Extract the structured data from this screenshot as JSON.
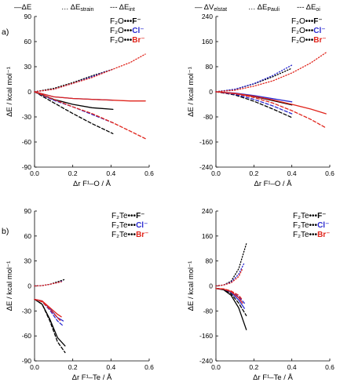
{
  "header": {
    "left": [
      {
        "dash": "solid",
        "text": "—ΔE"
      },
      {
        "dash": "dot",
        "text": "… ΔE_strain"
      },
      {
        "dash": "dash",
        "text": "--- ΔE_int"
      }
    ],
    "right": [
      {
        "dash": "solid",
        "text": "— ΔV_elstat"
      },
      {
        "dash": "dot",
        "text": "… ΔE_Pauli"
      },
      {
        "dash": "dash",
        "text": "--- ΔE_oi"
      }
    ]
  },
  "panel_labels": [
    "a)",
    "b)"
  ],
  "series_colors": {
    "F": "#000000",
    "Cl": "#2b2bd0",
    "Br": "#e0241b"
  },
  "chart_data": [
    {
      "type": "line",
      "panel": "a-left",
      "xlabel": "Δr F¹–O / Å",
      "ylabel": "ΔE / kcal mol⁻¹",
      "xlim": [
        0,
        0.6
      ],
      "ylim": [
        -90,
        90
      ],
      "xticks": [
        "0.0",
        "0.2",
        "0.4",
        "0.6"
      ],
      "yticks": [
        "90",
        "60",
        "30",
        "0",
        "-30",
        "-60",
        "-90"
      ],
      "legend": [
        {
          "prefix": "F₂O•••",
          "ion": "F⁻",
          "color": "#000000"
        },
        {
          "prefix": "F₂O•••",
          "ion": "Cl⁻",
          "color": "#2b2bd0"
        },
        {
          "prefix": "F₂O•••",
          "ion": "Br⁻",
          "color": "#e0241b"
        }
      ],
      "series": [
        {
          "ion": "F",
          "quantity": "dE",
          "dash": "solid",
          "x": [
            0,
            0.1,
            0.2,
            0.3,
            0.41
          ],
          "y": [
            0,
            -9,
            -15,
            -19,
            -21
          ]
        },
        {
          "ion": "F",
          "quantity": "dEstrain",
          "dash": "dot",
          "x": [
            0,
            0.1,
            0.2,
            0.3,
            0.41
          ],
          "y": [
            0,
            4,
            11,
            19,
            27
          ]
        },
        {
          "ion": "F",
          "quantity": "dEint",
          "dash": "dash",
          "x": [
            0,
            0.1,
            0.2,
            0.3,
            0.41
          ],
          "y": [
            0,
            -13,
            -26,
            -38,
            -50
          ]
        },
        {
          "ion": "Cl",
          "quantity": "dE",
          "dash": "solid",
          "x": [
            0,
            0.1,
            0.2,
            0.3,
            0.41
          ],
          "y": [
            0,
            -6,
            -8,
            -9,
            -10
          ]
        },
        {
          "ion": "Cl",
          "quantity": "dEstrain",
          "dash": "dot",
          "x": [
            0,
            0.1,
            0.2,
            0.3,
            0.41
          ],
          "y": [
            0,
            3,
            10,
            18,
            27
          ]
        },
        {
          "ion": "Cl",
          "quantity": "dEint",
          "dash": "dash",
          "x": [
            0,
            0.1,
            0.2,
            0.3,
            0.41
          ],
          "y": [
            0,
            -10,
            -18,
            -27,
            -37
          ]
        },
        {
          "ion": "Br",
          "quantity": "dE",
          "dash": "solid",
          "x": [
            0,
            0.1,
            0.2,
            0.3,
            0.41,
            0.5,
            0.58
          ],
          "y": [
            0,
            -6,
            -8,
            -9,
            -10,
            -11,
            -11
          ]
        },
        {
          "ion": "Br",
          "quantity": "dEstrain",
          "dash": "dot",
          "x": [
            0,
            0.1,
            0.2,
            0.3,
            0.41,
            0.5,
            0.58
          ],
          "y": [
            0,
            3,
            10,
            17,
            27,
            35,
            45
          ]
        },
        {
          "ion": "Br",
          "quantity": "dEint",
          "dash": "dash",
          "x": [
            0,
            0.1,
            0.2,
            0.3,
            0.41,
            0.5,
            0.58
          ],
          "y": [
            0,
            -9,
            -18,
            -26,
            -37,
            -47,
            -56
          ]
        }
      ]
    },
    {
      "type": "line",
      "panel": "a-right",
      "xlabel": "Δr F¹–O / Å",
      "ylabel": "ΔE / kcal mol⁻¹",
      "xlim": [
        0,
        0.6
      ],
      "ylim": [
        -240,
        240
      ],
      "xticks": [
        "0.0",
        "0.2",
        "0.4",
        "0.6"
      ],
      "yticks": [
        "240",
        "160",
        "80",
        "0",
        "-80",
        "-160",
        "-240"
      ],
      "legend": [
        {
          "prefix": "F₂O•••",
          "ion": "F⁻",
          "color": "#000000"
        },
        {
          "prefix": "F₂O•••",
          "ion": "Cl⁻",
          "color": "#2b2bd0"
        },
        {
          "prefix": "F₂O•••",
          "ion": "Br⁻",
          "color": "#e0241b"
        }
      ],
      "series": [
        {
          "ion": "F",
          "quantity": "dVelstat",
          "dash": "solid",
          "x": [
            0,
            0.1,
            0.2,
            0.3,
            0.4
          ],
          "y": [
            0,
            -5,
            -15,
            -28,
            -42
          ]
        },
        {
          "ion": "F",
          "quantity": "dEPauli",
          "dash": "dot",
          "x": [
            0,
            0.1,
            0.2,
            0.3,
            0.4
          ],
          "y": [
            0,
            8,
            25,
            48,
            75
          ]
        },
        {
          "ion": "F",
          "quantity": "dEoi",
          "dash": "dash",
          "x": [
            0,
            0.1,
            0.2,
            0.3,
            0.4
          ],
          "y": [
            0,
            -10,
            -30,
            -55,
            -82
          ]
        },
        {
          "ion": "Cl",
          "quantity": "dVelstat",
          "dash": "solid",
          "x": [
            0,
            0.1,
            0.2,
            0.3,
            0.4
          ],
          "y": [
            0,
            -4,
            -12,
            -22,
            -32
          ]
        },
        {
          "ion": "Cl",
          "quantity": "dEPauli",
          "dash": "dot",
          "x": [
            0,
            0.1,
            0.2,
            0.3,
            0.4
          ],
          "y": [
            0,
            8,
            26,
            52,
            85
          ]
        },
        {
          "ion": "Cl",
          "quantity": "dEoi",
          "dash": "dash",
          "x": [
            0,
            0.1,
            0.2,
            0.3,
            0.4
          ],
          "y": [
            0,
            -8,
            -24,
            -45,
            -70
          ]
        },
        {
          "ion": "Br",
          "quantity": "dVelstat",
          "dash": "solid",
          "x": [
            0,
            0.1,
            0.2,
            0.3,
            0.4,
            0.5,
            0.58
          ],
          "y": [
            0,
            -5,
            -14,
            -26,
            -40,
            -55,
            -70
          ]
        },
        {
          "ion": "Br",
          "quantity": "dEPauli",
          "dash": "dot",
          "x": [
            0,
            0.1,
            0.2,
            0.3,
            0.4,
            0.5,
            0.58
          ],
          "y": [
            0,
            5,
            18,
            35,
            60,
            92,
            125
          ]
        },
        {
          "ion": "Br",
          "quantity": "dEoi",
          "dash": "dash",
          "x": [
            0,
            0.1,
            0.2,
            0.3,
            0.4,
            0.5,
            0.58
          ],
          "y": [
            0,
            -6,
            -18,
            -36,
            -60,
            -88,
            -115
          ]
        }
      ]
    },
    {
      "type": "line",
      "panel": "b-left",
      "xlabel": "Δr F¹–Te / Å",
      "ylabel": "ΔE / kcal mol⁻¹",
      "xlim": [
        0,
        0.6
      ],
      "ylim": [
        -90,
        90
      ],
      "xticks": [
        "0.0",
        "0.2",
        "0.4",
        "0.6"
      ],
      "yticks": [
        "90",
        "60",
        "30",
        "0",
        "-30",
        "-60",
        "-90"
      ],
      "legend": [
        {
          "prefix": "F₂Te•••",
          "ion": "F⁻",
          "color": "#000000"
        },
        {
          "prefix": "F₂Te•••",
          "ion": "Cl⁻",
          "color": "#2b2bd0"
        },
        {
          "prefix": "F₂Te•••",
          "ion": "Br⁻",
          "color": "#e0241b"
        }
      ],
      "series": [
        {
          "ion": "F",
          "quantity": "dE",
          "dash": "solid",
          "x": [
            0,
            0.04,
            0.08,
            0.12,
            0.16
          ],
          "y": [
            -16,
            -22,
            -40,
            -62,
            -72
          ]
        },
        {
          "ion": "F",
          "quantity": "dEstrain",
          "dash": "dot",
          "x": [
            0,
            0.04,
            0.08,
            0.12,
            0.16
          ],
          "y": [
            0,
            0.5,
            2,
            5,
            8
          ]
        },
        {
          "ion": "F",
          "quantity": "dEint",
          "dash": "dash",
          "x": [
            0,
            0.04,
            0.08,
            0.12,
            0.16
          ],
          "y": [
            -16,
            -22,
            -42,
            -67,
            -80
          ]
        },
        {
          "ion": "Cl",
          "quantity": "dE",
          "dash": "solid",
          "x": [
            0,
            0.04,
            0.08,
            0.12,
            0.15
          ],
          "y": [
            -16,
            -18,
            -27,
            -38,
            -42
          ]
        },
        {
          "ion": "Cl",
          "quantity": "dEstrain",
          "dash": "dot",
          "x": [
            0,
            0.04,
            0.08,
            0.12,
            0.15
          ],
          "y": [
            0,
            0.5,
            2,
            4,
            6
          ]
        },
        {
          "ion": "Cl",
          "quantity": "dEint",
          "dash": "dash",
          "x": [
            0,
            0.04,
            0.08,
            0.12,
            0.15
          ],
          "y": [
            -16,
            -19,
            -29,
            -42,
            -48
          ]
        },
        {
          "ion": "Br",
          "quantity": "dE",
          "dash": "solid",
          "x": [
            0,
            0.04,
            0.08,
            0.12,
            0.14
          ],
          "y": [
            -16,
            -18,
            -26,
            -34,
            -37
          ]
        },
        {
          "ion": "Br",
          "quantity": "dEstrain",
          "dash": "dot",
          "x": [
            0,
            0.04,
            0.08,
            0.12,
            0.14
          ],
          "y": [
            0,
            0.5,
            2,
            4,
            5
          ]
        },
        {
          "ion": "Br",
          "quantity": "dEint",
          "dash": "dash",
          "x": [
            0,
            0.04,
            0.08,
            0.12,
            0.14
          ],
          "y": [
            -16,
            -19,
            -28,
            -38,
            -43
          ]
        }
      ]
    },
    {
      "type": "line",
      "panel": "b-right",
      "xlabel": "Δr F¹–Te / Å",
      "ylabel": "ΔE / kcal mol⁻¹",
      "xlim": [
        0,
        0.6
      ],
      "ylim": [
        -240,
        240
      ],
      "xticks": [
        "0.0",
        "0.2",
        "0.4",
        "0.6"
      ],
      "yticks": [
        "240",
        "160",
        "80",
        "0",
        "-80",
        "-160",
        "-240"
      ],
      "legend": [
        {
          "prefix": "F₂Te•••",
          "ion": "F⁻",
          "color": "#000000"
        },
        {
          "prefix": "F₂Te•••",
          "ion": "Cl⁻",
          "color": "#2b2bd0"
        },
        {
          "prefix": "F₂Te•••",
          "ion": "Br⁻",
          "color": "#e0241b"
        }
      ],
      "series": [
        {
          "ion": "F",
          "quantity": "dVelstat",
          "dash": "solid",
          "x": [
            0,
            0.04,
            0.08,
            0.12,
            0.16
          ],
          "y": [
            -8,
            -12,
            -30,
            -70,
            -140
          ]
        },
        {
          "ion": "F",
          "quantity": "dEPauli",
          "dash": "dot",
          "x": [
            0,
            0.04,
            0.08,
            0.12,
            0.16
          ],
          "y": [
            0,
            3,
            15,
            55,
            135
          ]
        },
        {
          "ion": "F",
          "quantity": "dEoi",
          "dash": "dash",
          "x": [
            0,
            0.04,
            0.08,
            0.12,
            0.16
          ],
          "y": [
            -8,
            -11,
            -25,
            -55,
            -95
          ]
        },
        {
          "ion": "Cl",
          "quantity": "dVelstat",
          "dash": "solid",
          "x": [
            0,
            0.04,
            0.08,
            0.12,
            0.15
          ],
          "y": [
            -8,
            -10,
            -20,
            -45,
            -72
          ]
        },
        {
          "ion": "Cl",
          "quantity": "dEPauli",
          "dash": "dot",
          "x": [
            0,
            0.04,
            0.08,
            0.12,
            0.15
          ],
          "y": [
            0,
            3,
            12,
            38,
            75
          ]
        },
        {
          "ion": "Cl",
          "quantity": "dEoi",
          "dash": "dash",
          "x": [
            0,
            0.04,
            0.08,
            0.12,
            0.15
          ],
          "y": [
            -8,
            -10,
            -18,
            -35,
            -55
          ]
        },
        {
          "ion": "Br",
          "quantity": "dVelstat",
          "dash": "solid",
          "x": [
            0,
            0.04,
            0.08,
            0.12,
            0.14
          ],
          "y": [
            -8,
            -10,
            -18,
            -38,
            -55
          ]
        },
        {
          "ion": "Br",
          "quantity": "dEPauli",
          "dash": "dot",
          "x": [
            0,
            0.04,
            0.08,
            0.12,
            0.14
          ],
          "y": [
            0,
            3,
            10,
            30,
            55
          ]
        },
        {
          "ion": "Br",
          "quantity": "dEoi",
          "dash": "dash",
          "x": [
            0,
            0.04,
            0.08,
            0.12,
            0.14
          ],
          "y": [
            -8,
            -9,
            -16,
            -30,
            -45
          ]
        }
      ]
    }
  ]
}
